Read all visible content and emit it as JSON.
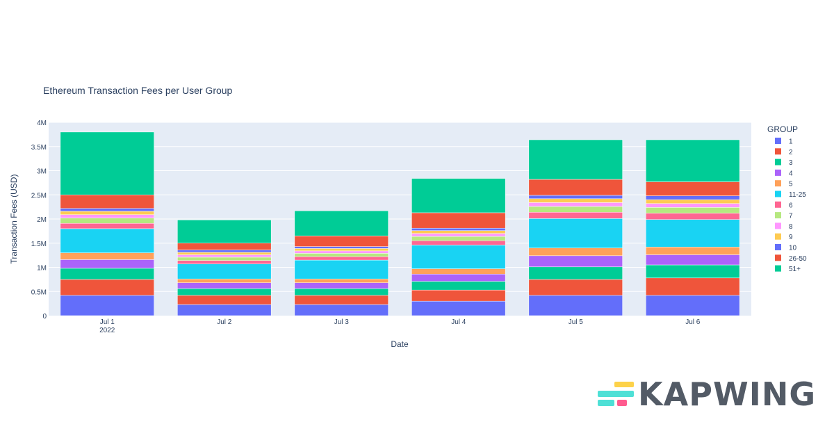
{
  "chart_data": {
    "type": "bar",
    "stacked": true,
    "title": "Ethereum Transaction Fees per User Group",
    "xlabel": "Date",
    "ylabel": "Transaction Fees (USD)",
    "ylim": [
      0,
      4000000
    ],
    "y_ticks": [
      {
        "value": 0,
        "label": "0"
      },
      {
        "value": 500000,
        "label": "0.5M"
      },
      {
        "value": 1000000,
        "label": "1M"
      },
      {
        "value": 1500000,
        "label": "1.5M"
      },
      {
        "value": 2000000,
        "label": "2M"
      },
      {
        "value": 2500000,
        "label": "2.5M"
      },
      {
        "value": 3000000,
        "label": "3M"
      },
      {
        "value": 3500000,
        "label": "3.5M"
      },
      {
        "value": 4000000,
        "label": "4M"
      }
    ],
    "categories": [
      "Jul 1",
      "Jul 2",
      "Jul 3",
      "Jul 4",
      "Jul 5",
      "Jul 6"
    ],
    "category_sublabels": [
      "2022",
      "",
      "",
      "",
      "",
      ""
    ],
    "legend_title": "GROUP",
    "legend_position": "right",
    "series": [
      {
        "name": "1",
        "color": "#636efa",
        "values": [
          420000,
          230000,
          230000,
          300000,
          420000,
          420000
        ]
      },
      {
        "name": "2",
        "color": "#ef553b",
        "values": [
          330000,
          190000,
          190000,
          230000,
          330000,
          360000
        ]
      },
      {
        "name": "3",
        "color": "#00cc96",
        "values": [
          230000,
          140000,
          140000,
          180000,
          260000,
          270000
        ]
      },
      {
        "name": "4",
        "color": "#ab63fa",
        "values": [
          180000,
          120000,
          120000,
          150000,
          230000,
          210000
        ]
      },
      {
        "name": "5",
        "color": "#ffa15a",
        "values": [
          140000,
          80000,
          80000,
          110000,
          160000,
          160000
        ]
      },
      {
        "name": "11-25",
        "color": "#19d3f3",
        "values": [
          500000,
          310000,
          390000,
          490000,
          610000,
          570000
        ]
      },
      {
        "name": "6",
        "color": "#ff6692",
        "values": [
          110000,
          70000,
          70000,
          90000,
          130000,
          130000
        ]
      },
      {
        "name": "7",
        "color": "#b6e880",
        "values": [
          110000,
          70000,
          70000,
          90000,
          120000,
          120000
        ]
      },
      {
        "name": "8",
        "color": "#ff97ff",
        "values": [
          70000,
          50000,
          50000,
          60000,
          80000,
          80000
        ]
      },
      {
        "name": "9",
        "color": "#fecb52",
        "values": [
          70000,
          50000,
          50000,
          60000,
          80000,
          80000
        ]
      },
      {
        "name": "10",
        "color": "#636efa",
        "values": [
          60000,
          50000,
          40000,
          50000,
          70000,
          80000
        ]
      },
      {
        "name": "26-50",
        "color": "#ef553b",
        "values": [
          280000,
          140000,
          220000,
          320000,
          330000,
          290000
        ]
      },
      {
        "name": "51+",
        "color": "#00cc96",
        "values": [
          1300000,
          480000,
          520000,
          710000,
          820000,
          870000
        ]
      }
    ]
  },
  "watermark": {
    "text": "KAPWING",
    "colors": [
      "#fdd249",
      "#4ee0d6",
      "#ff5b8f"
    ]
  }
}
